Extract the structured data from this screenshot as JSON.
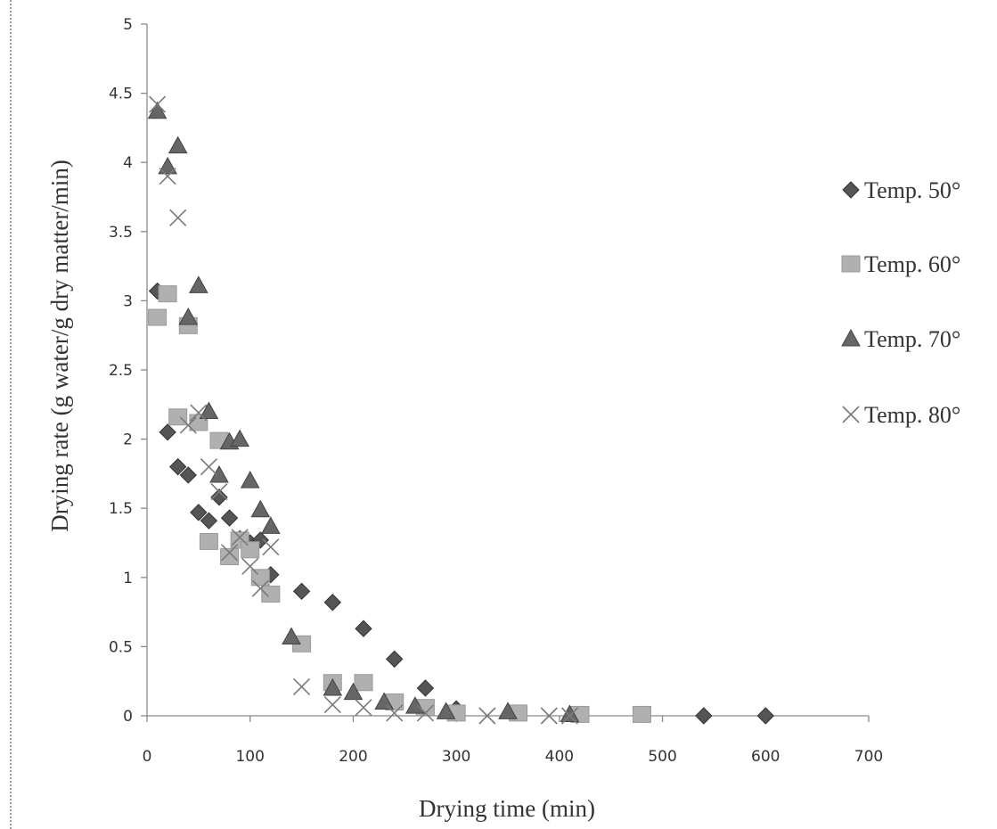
{
  "chart_data": {
    "type": "scatter",
    "title": "",
    "xlabel": "Drying time (min)",
    "ylabel": "Drying rate  (g water/g dry matter/min)",
    "xlim": [
      0,
      700
    ],
    "ylim": [
      0,
      5
    ],
    "x_ticks": [
      "0",
      "100",
      "200",
      "300",
      "400",
      "500",
      "600",
      "700"
    ],
    "y_ticks": [
      "0",
      "0.5",
      "1",
      "1.5",
      "2",
      "2.5",
      "3",
      "3.5",
      "4",
      "4.5",
      "5"
    ],
    "grid": false,
    "legend_position": "right",
    "series": [
      {
        "name": "Temp. 50°",
        "marker": "diamond",
        "color": "#555555",
        "points": [
          [
            10,
            3.07
          ],
          [
            20,
            2.05
          ],
          [
            30,
            1.8
          ],
          [
            40,
            1.74
          ],
          [
            50,
            1.47
          ],
          [
            60,
            1.41
          ],
          [
            70,
            1.58
          ],
          [
            80,
            1.43
          ],
          [
            90,
            1.28
          ],
          [
            100,
            1.25
          ],
          [
            110,
            1.27
          ],
          [
            120,
            1.02
          ],
          [
            150,
            0.9
          ],
          [
            180,
            0.82
          ],
          [
            210,
            0.63
          ],
          [
            240,
            0.41
          ],
          [
            270,
            0.2
          ],
          [
            300,
            0.05
          ],
          [
            360,
            0.02
          ],
          [
            420,
            0.01
          ],
          [
            480,
            0.01
          ],
          [
            540,
            0.0
          ],
          [
            600,
            0.0
          ]
        ]
      },
      {
        "name": "Temp. 60°",
        "marker": "square",
        "color": "#b0b0b0",
        "points": [
          [
            10,
            2.88
          ],
          [
            20,
            3.05
          ],
          [
            30,
            2.16
          ],
          [
            40,
            2.82
          ],
          [
            50,
            2.12
          ],
          [
            60,
            1.26
          ],
          [
            70,
            1.99
          ],
          [
            80,
            1.15
          ],
          [
            90,
            1.27
          ],
          [
            100,
            1.2
          ],
          [
            110,
            1.0
          ],
          [
            120,
            0.88
          ],
          [
            150,
            0.52
          ],
          [
            180,
            0.24
          ],
          [
            210,
            0.24
          ],
          [
            240,
            0.1
          ],
          [
            270,
            0.06
          ],
          [
            300,
            0.02
          ],
          [
            360,
            0.02
          ],
          [
            420,
            0.01
          ],
          [
            480,
            0.01
          ]
        ]
      },
      {
        "name": "Temp. 70°",
        "marker": "triangle",
        "color": "#666666",
        "points": [
          [
            10,
            4.37
          ],
          [
            20,
            3.97
          ],
          [
            30,
            4.12
          ],
          [
            40,
            2.88
          ],
          [
            50,
            3.11
          ],
          [
            60,
            2.2
          ],
          [
            70,
            1.74
          ],
          [
            80,
            1.98
          ],
          [
            90,
            2.0
          ],
          [
            100,
            1.7
          ],
          [
            110,
            1.49
          ],
          [
            120,
            1.37
          ],
          [
            140,
            0.57
          ],
          [
            180,
            0.2
          ],
          [
            200,
            0.17
          ],
          [
            230,
            0.1
          ],
          [
            260,
            0.07
          ],
          [
            290,
            0.03
          ],
          [
            350,
            0.03
          ],
          [
            410,
            0.01
          ]
        ]
      },
      {
        "name": "Temp. 80°",
        "marker": "cross",
        "color": "#7a7a7a",
        "points": [
          [
            10,
            4.42
          ],
          [
            20,
            3.9
          ],
          [
            30,
            3.6
          ],
          [
            40,
            2.1
          ],
          [
            50,
            2.19
          ],
          [
            60,
            1.8
          ],
          [
            70,
            1.62
          ],
          [
            80,
            1.18
          ],
          [
            90,
            1.29
          ],
          [
            100,
            1.08
          ],
          [
            110,
            0.92
          ],
          [
            120,
            1.22
          ],
          [
            150,
            0.21
          ],
          [
            180,
            0.08
          ],
          [
            210,
            0.06
          ],
          [
            240,
            0.02
          ],
          [
            270,
            0.02
          ],
          [
            330,
            0.0
          ],
          [
            390,
            0.0
          ],
          [
            410,
            0.0
          ]
        ]
      }
    ]
  }
}
